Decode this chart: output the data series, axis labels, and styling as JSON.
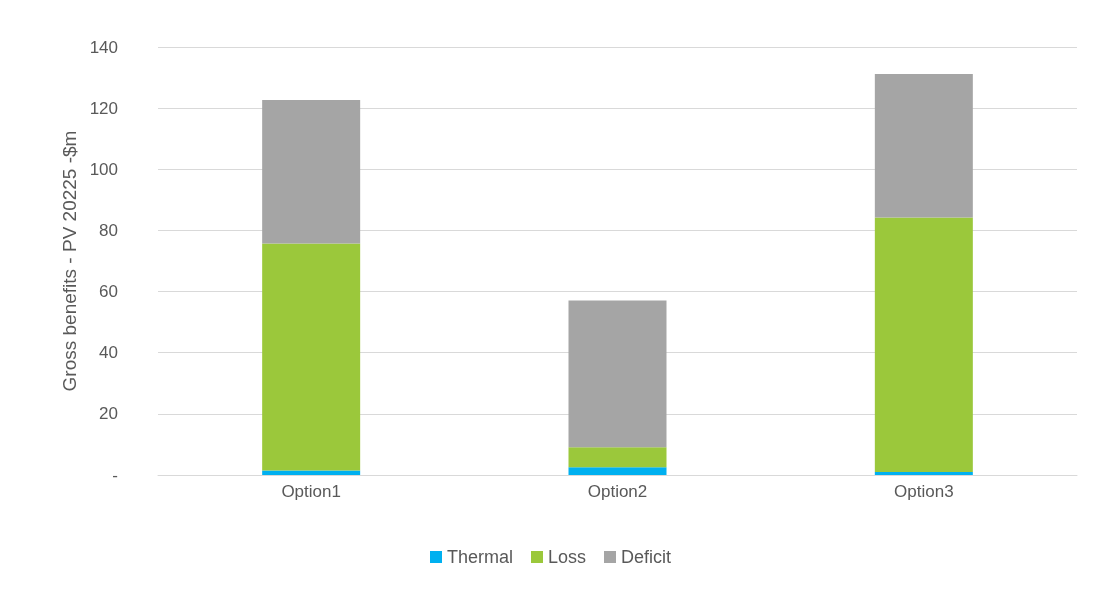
{
  "chart_data": {
    "type": "bar",
    "stacked": true,
    "ylabel": "Gross benefits - PV 20225 -$m",
    "categories": [
      "Option1",
      "Option2",
      "Option3"
    ],
    "series": [
      {
        "name": "Thermal",
        "color": "#00b0f0",
        "values": [
          1.5,
          2.5,
          1
        ]
      },
      {
        "name": "Loss",
        "color": "#9bc83b",
        "values": [
          74.2,
          6.6,
          83.2
        ]
      },
      {
        "name": "Deficit",
        "color": "#a5a5a5",
        "values": [
          47,
          48,
          47
        ]
      }
    ],
    "ylim": [
      0,
      140
    ],
    "yticks": [
      {
        "value": 0,
        "label": "-"
      },
      20,
      40,
      60,
      80,
      100,
      120,
      140
    ],
    "grid": "y",
    "legend": "bottom"
  }
}
